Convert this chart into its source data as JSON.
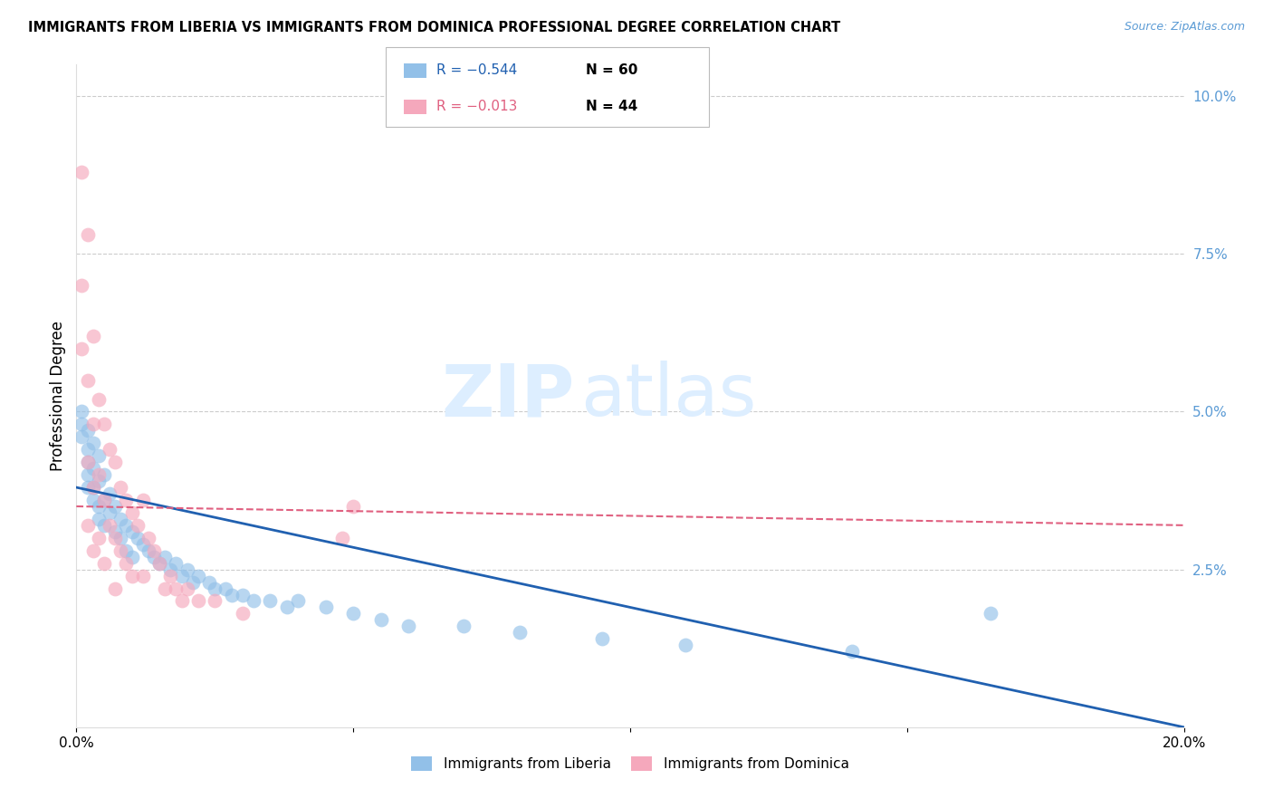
{
  "title": "IMMIGRANTS FROM LIBERIA VS IMMIGRANTS FROM DOMINICA PROFESSIONAL DEGREE CORRELATION CHART",
  "source": "Source: ZipAtlas.com",
  "xlabel_liberia": "Immigrants from Liberia",
  "xlabel_dominica": "Immigrants from Dominica",
  "ylabel": "Professional Degree",
  "xlim": [
    0.0,
    0.2
  ],
  "ylim": [
    0.0,
    0.105
  ],
  "yticks_right": [
    0.025,
    0.05,
    0.075,
    0.1
  ],
  "ytick_right_labels": [
    "2.5%",
    "5.0%",
    "7.5%",
    "10.0%"
  ],
  "legend_liberia_R": "R = −0.544",
  "legend_liberia_N": "N = 60",
  "legend_dominica_R": "R = −0.013",
  "legend_dominica_N": "N = 44",
  "color_liberia": "#92c0e8",
  "color_dominica": "#f5a8bc",
  "color_liberia_line": "#2060b0",
  "color_dominica_line": "#e06080",
  "color_axis_right": "#5b9bd5",
  "color_R_liberia": "#2060b0",
  "color_R_dominica": "#e06080",
  "watermark_zip": "ZIP",
  "watermark_atlas": "atlas",
  "watermark_color": "#ddeeff",
  "liberia_x": [
    0.001,
    0.001,
    0.001,
    0.002,
    0.002,
    0.002,
    0.002,
    0.002,
    0.003,
    0.003,
    0.003,
    0.003,
    0.004,
    0.004,
    0.004,
    0.004,
    0.005,
    0.005,
    0.005,
    0.006,
    0.006,
    0.007,
    0.007,
    0.008,
    0.008,
    0.009,
    0.009,
    0.01,
    0.01,
    0.011,
    0.012,
    0.013,
    0.014,
    0.015,
    0.016,
    0.017,
    0.018,
    0.019,
    0.02,
    0.021,
    0.022,
    0.024,
    0.025,
    0.027,
    0.028,
    0.03,
    0.032,
    0.035,
    0.038,
    0.04,
    0.045,
    0.05,
    0.055,
    0.06,
    0.07,
    0.08,
    0.095,
    0.11,
    0.14,
    0.165
  ],
  "liberia_y": [
    0.05,
    0.048,
    0.046,
    0.047,
    0.044,
    0.042,
    0.04,
    0.038,
    0.045,
    0.041,
    0.038,
    0.036,
    0.043,
    0.039,
    0.035,
    0.033,
    0.04,
    0.036,
    0.032,
    0.037,
    0.034,
    0.035,
    0.031,
    0.033,
    0.03,
    0.032,
    0.028,
    0.031,
    0.027,
    0.03,
    0.029,
    0.028,
    0.027,
    0.026,
    0.027,
    0.025,
    0.026,
    0.024,
    0.025,
    0.023,
    0.024,
    0.023,
    0.022,
    0.022,
    0.021,
    0.021,
    0.02,
    0.02,
    0.019,
    0.02,
    0.019,
    0.018,
    0.017,
    0.016,
    0.016,
    0.015,
    0.014,
    0.013,
    0.012,
    0.018
  ],
  "dominica_x": [
    0.001,
    0.001,
    0.001,
    0.002,
    0.002,
    0.002,
    0.002,
    0.003,
    0.003,
    0.003,
    0.003,
    0.004,
    0.004,
    0.004,
    0.005,
    0.005,
    0.005,
    0.006,
    0.006,
    0.007,
    0.007,
    0.007,
    0.008,
    0.008,
    0.009,
    0.009,
    0.01,
    0.01,
    0.011,
    0.012,
    0.012,
    0.013,
    0.014,
    0.015,
    0.016,
    0.017,
    0.018,
    0.019,
    0.02,
    0.022,
    0.025,
    0.03,
    0.05,
    0.048
  ],
  "dominica_y": [
    0.088,
    0.07,
    0.06,
    0.078,
    0.055,
    0.042,
    0.032,
    0.062,
    0.048,
    0.038,
    0.028,
    0.052,
    0.04,
    0.03,
    0.048,
    0.036,
    0.026,
    0.044,
    0.032,
    0.042,
    0.03,
    0.022,
    0.038,
    0.028,
    0.036,
    0.026,
    0.034,
    0.024,
    0.032,
    0.036,
    0.024,
    0.03,
    0.028,
    0.026,
    0.022,
    0.024,
    0.022,
    0.02,
    0.022,
    0.02,
    0.02,
    0.018,
    0.035,
    0.03
  ],
  "liberia_trend_x0": 0.0,
  "liberia_trend_x1": 0.2,
  "liberia_trend_y0": 0.038,
  "liberia_trend_y1": 0.0,
  "dominica_trend_x0": 0.0,
  "dominica_trend_x1": 0.2,
  "dominica_trend_y0": 0.035,
  "dominica_trend_y1": 0.032
}
